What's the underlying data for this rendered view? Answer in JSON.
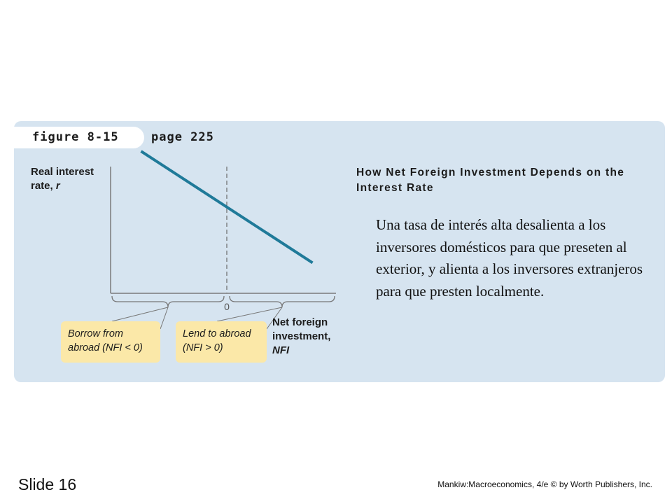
{
  "figure": {
    "label": "figure 8-15",
    "page": "page 225",
    "title": "How Net Foreign Investment Depends on the Interest Rate"
  },
  "chart_data": {
    "type": "line",
    "ylabel": "Real interest rate,",
    "ylabel_var": "r",
    "xlabel": "Net foreign investment,",
    "xlabel_var": "NFI",
    "zero_tick": "0",
    "zero_line": "dashed",
    "series": [
      {
        "color": "#1f7a99",
        "points": [
          [
            -4.9,
            3.7
          ],
          [
            4.9,
            -2.2
          ]
        ]
      }
    ],
    "annotations": [
      {
        "text": "Borrow from abroad (NFI < 0)",
        "region": "NFI < 0"
      },
      {
        "text": "Lend to abroad (NFI > 0)",
        "region": "NFI > 0"
      }
    ]
  },
  "notes": {
    "borrow": "Borrow from abroad (NFI < 0)",
    "lend": "Lend to abroad (NFI > 0)"
  },
  "body_text": "Una tasa de interés alta desalienta a los inversores domésticos para que preseten al exterior, y alienta a los inversores extranjeros para que presten localmente.",
  "footer": {
    "slide": "Slide 16",
    "credit": "Mankiw:Macroeconomics, 4/e © by Worth Publishers, Inc."
  }
}
